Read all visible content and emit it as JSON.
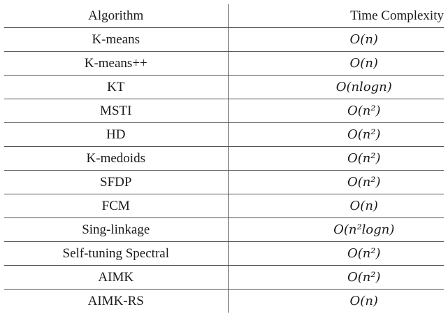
{
  "table": {
    "headers": [
      "Algorithm",
      "Time Complexity"
    ],
    "rows": [
      {
        "algorithm": "K-means",
        "complexity": "O(n)"
      },
      {
        "algorithm": "K-means++",
        "complexity": "O(n)"
      },
      {
        "algorithm": "KT",
        "complexity": "O(nlogn)"
      },
      {
        "algorithm": "MSTI",
        "complexity": "O(n²)"
      },
      {
        "algorithm": "HD",
        "complexity": "O(n²)"
      },
      {
        "algorithm": "K-medoids",
        "complexity": "O(n²)"
      },
      {
        "algorithm": "SFDP",
        "complexity": "O(n²)"
      },
      {
        "algorithm": "FCM",
        "complexity": "O(n)"
      },
      {
        "algorithm": "Sing-linkage",
        "complexity": "O(n²logn)"
      },
      {
        "algorithm": "Self-tuning Spectral",
        "complexity": "O(n²)"
      },
      {
        "algorithm": "AIMK",
        "complexity": "O(n²)"
      },
      {
        "algorithm": "AIMK-RS",
        "complexity": "O(n)"
      }
    ]
  }
}
